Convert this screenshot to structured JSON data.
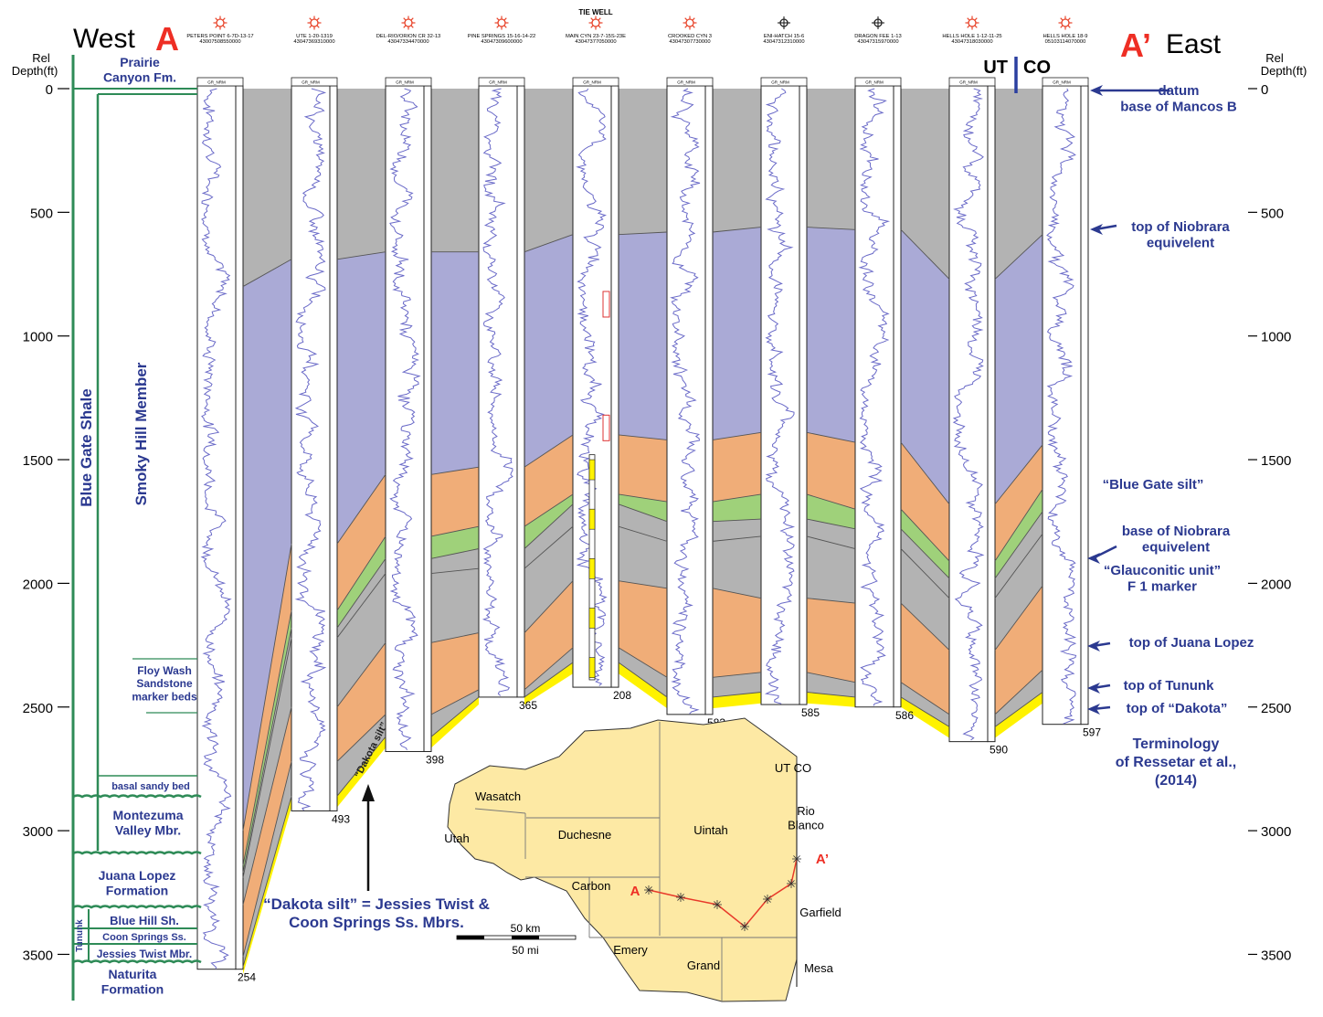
{
  "header": {
    "west": "West",
    "east": "East",
    "point_a": "A",
    "point_a_prime": "A’",
    "tie_well": "TIE WELL",
    "ut": "UT",
    "co": "CO"
  },
  "axis": {
    "label_line1": "Rel",
    "label_line2": "Depth(ft)",
    "ticks": [
      0,
      500,
      1000,
      1500,
      2000,
      2500,
      3000,
      3500
    ]
  },
  "colors": {
    "background": "#ffffff",
    "pre_niobrara_gray": "#b3b3b3",
    "niobrara_purple": "#aaaad6",
    "blue_gate_silt_orange": "#f0ad78",
    "glauconitic_green": "#9fd17a",
    "juana_lopez_gray": "#b3b3b3",
    "tununk_orange": "#f0ad78",
    "dakota_yellow": "#fff200",
    "log_trace": "#6a6ac8",
    "annotation_navy": "#2b3990",
    "formation_green": "#2e8b57",
    "map_fill": "#fde9a4",
    "well_symbol": "#e8442a",
    "red_label": "#ee2e24"
  },
  "wells": [
    {
      "name": "PETERS POINT 6-7D-13-17",
      "api": "43007508550000",
      "td": "254",
      "symbol": "gas-well-icon",
      "td_depth": 3560
    },
    {
      "name": "UTE 1-20-1319",
      "api": "43047369310000",
      "td": "493",
      "symbol": "gas-well-icon",
      "td_depth": 2920
    },
    {
      "name": "DEL-RIO/ORION CR 32-13",
      "api": "43047334470000",
      "td": "398",
      "symbol": "gas-well-icon",
      "td_depth": 2680
    },
    {
      "name": "PINE SPRINGS 15-16-14-22",
      "api": "43047309600000",
      "td": "365",
      "symbol": "gas-well-icon",
      "td_depth": 2460
    },
    {
      "name": "MAIN CYN 23-7-15S-23E",
      "api": "43047377050000",
      "td": "208",
      "symbol": "gas-well-icon",
      "td_depth": 2420
    },
    {
      "name": "CROOKED CYN 3",
      "api": "43047307730000",
      "td": "583",
      "symbol": "gas-well-icon",
      "td_depth": 2530
    },
    {
      "name": "ENI-HATCH 15-6",
      "api": "43047312310000",
      "td": "585",
      "symbol": "dry-hole-icon",
      "td_depth": 2490
    },
    {
      "name": "DRAGON FEE 1-13",
      "api": "43047315970000",
      "td": "586",
      "symbol": "dry-hole-icon",
      "td_depth": 2500
    },
    {
      "name": "HELLS HOLE 1-12-11-25",
      "api": "43047318030000",
      "td": "590",
      "symbol": "gas-well-icon",
      "td_depth": 2640
    },
    {
      "name": "HELLS HOLE 18-9",
      "api": "05103114070000",
      "td": "597",
      "symbol": "gas-well-icon",
      "td_depth": 2570
    }
  ],
  "log_header": "GR_NRM",
  "surfaces": {
    "niobrara_top": [
      800,
      690,
      660,
      660,
      590,
      580,
      560,
      570,
      770,
      590
    ],
    "blue_gate_silt": [
      3000,
      1840,
      1560,
      1530,
      1400,
      1420,
      1390,
      1430,
      1680,
      1440
    ],
    "base_niobrara": [
      3140,
      2110,
      1810,
      1770,
      1640,
      1670,
      1640,
      1700,
      1910,
      1620
    ],
    "glauconitic": [
      3170,
      2180,
      1900,
      1860,
      1680,
      1750,
      1740,
      1780,
      1980,
      1710
    ],
    "f1_marker": [
      3190,
      2220,
      1960,
      1940,
      1770,
      1830,
      1810,
      1860,
      2060,
      1800
    ],
    "juana_lopez": [
      3300,
      2500,
      2240,
      2200,
      1990,
      2020,
      2060,
      2080,
      2270,
      2010
    ],
    "tununk": [
      3510,
      2720,
      2530,
      2430,
      2260,
      2380,
      2360,
      2400,
      2530,
      2350
    ],
    "dakota": [
      3550,
      2860,
      2620,
      2480,
      2320,
      2460,
      2440,
      2460,
      2580,
      2440
    ]
  },
  "left_column": {
    "formation": "Blue Gate Shale",
    "member": "Smoky Hill Member",
    "prairie": "Prairie\nCanyon Fm.",
    "floy_wash": "Floy Wash\nSandstone\nmarker beds",
    "basal_sandy": "basal sandy bed",
    "montezuma": "Montezuma\nValley Mbr.",
    "juana_lopez": "Juana Lopez\nFormation",
    "tununk": "Tununk",
    "blue_hill": "Blue Hill Sh.",
    "coon_springs": "Coon Springs Ss.",
    "jessies_twist": "Jessies Twist Mbr.",
    "naturita": "Naturita\nFormation"
  },
  "right_labels": {
    "datum": "datum\nbase of Mancos B",
    "top_niobrara": "top of Niobrara\nequivelent",
    "blue_gate_silt": "“Blue Gate silt”",
    "base_niobrara": "base of Niobrara\nequivelent",
    "glauconitic": "“Glauconitic unit”\nF 1 marker",
    "top_juana": "top of Juana Lopez",
    "top_tununk": "top of Tununk",
    "top_dakota": "top of “Dakota”",
    "terminology": "Terminology\nof Ressetar et al.,\n(2014)"
  },
  "annotations": {
    "dakota_silt_tag": "“Dakota silt”",
    "dakota_silt_note": "“Dakota silt” = Jessies Twist &\nCoon Springs Ss. Mbrs."
  },
  "map": {
    "counties": [
      {
        "name": "Wasatch"
      },
      {
        "name": "Utah"
      },
      {
        "name": "Duchesne"
      },
      {
        "name": "Uintah"
      },
      {
        "name": "Carbon"
      },
      {
        "name": "Emery"
      },
      {
        "name": "Grand"
      },
      {
        "name": "Rio\nBlanco"
      },
      {
        "name": "Garfield"
      },
      {
        "name": "Mesa"
      }
    ],
    "state_line": "UT CO",
    "label_a": "A",
    "label_a_prime": "A’",
    "scale_km": "50 km",
    "scale_mi": "50 mi"
  }
}
